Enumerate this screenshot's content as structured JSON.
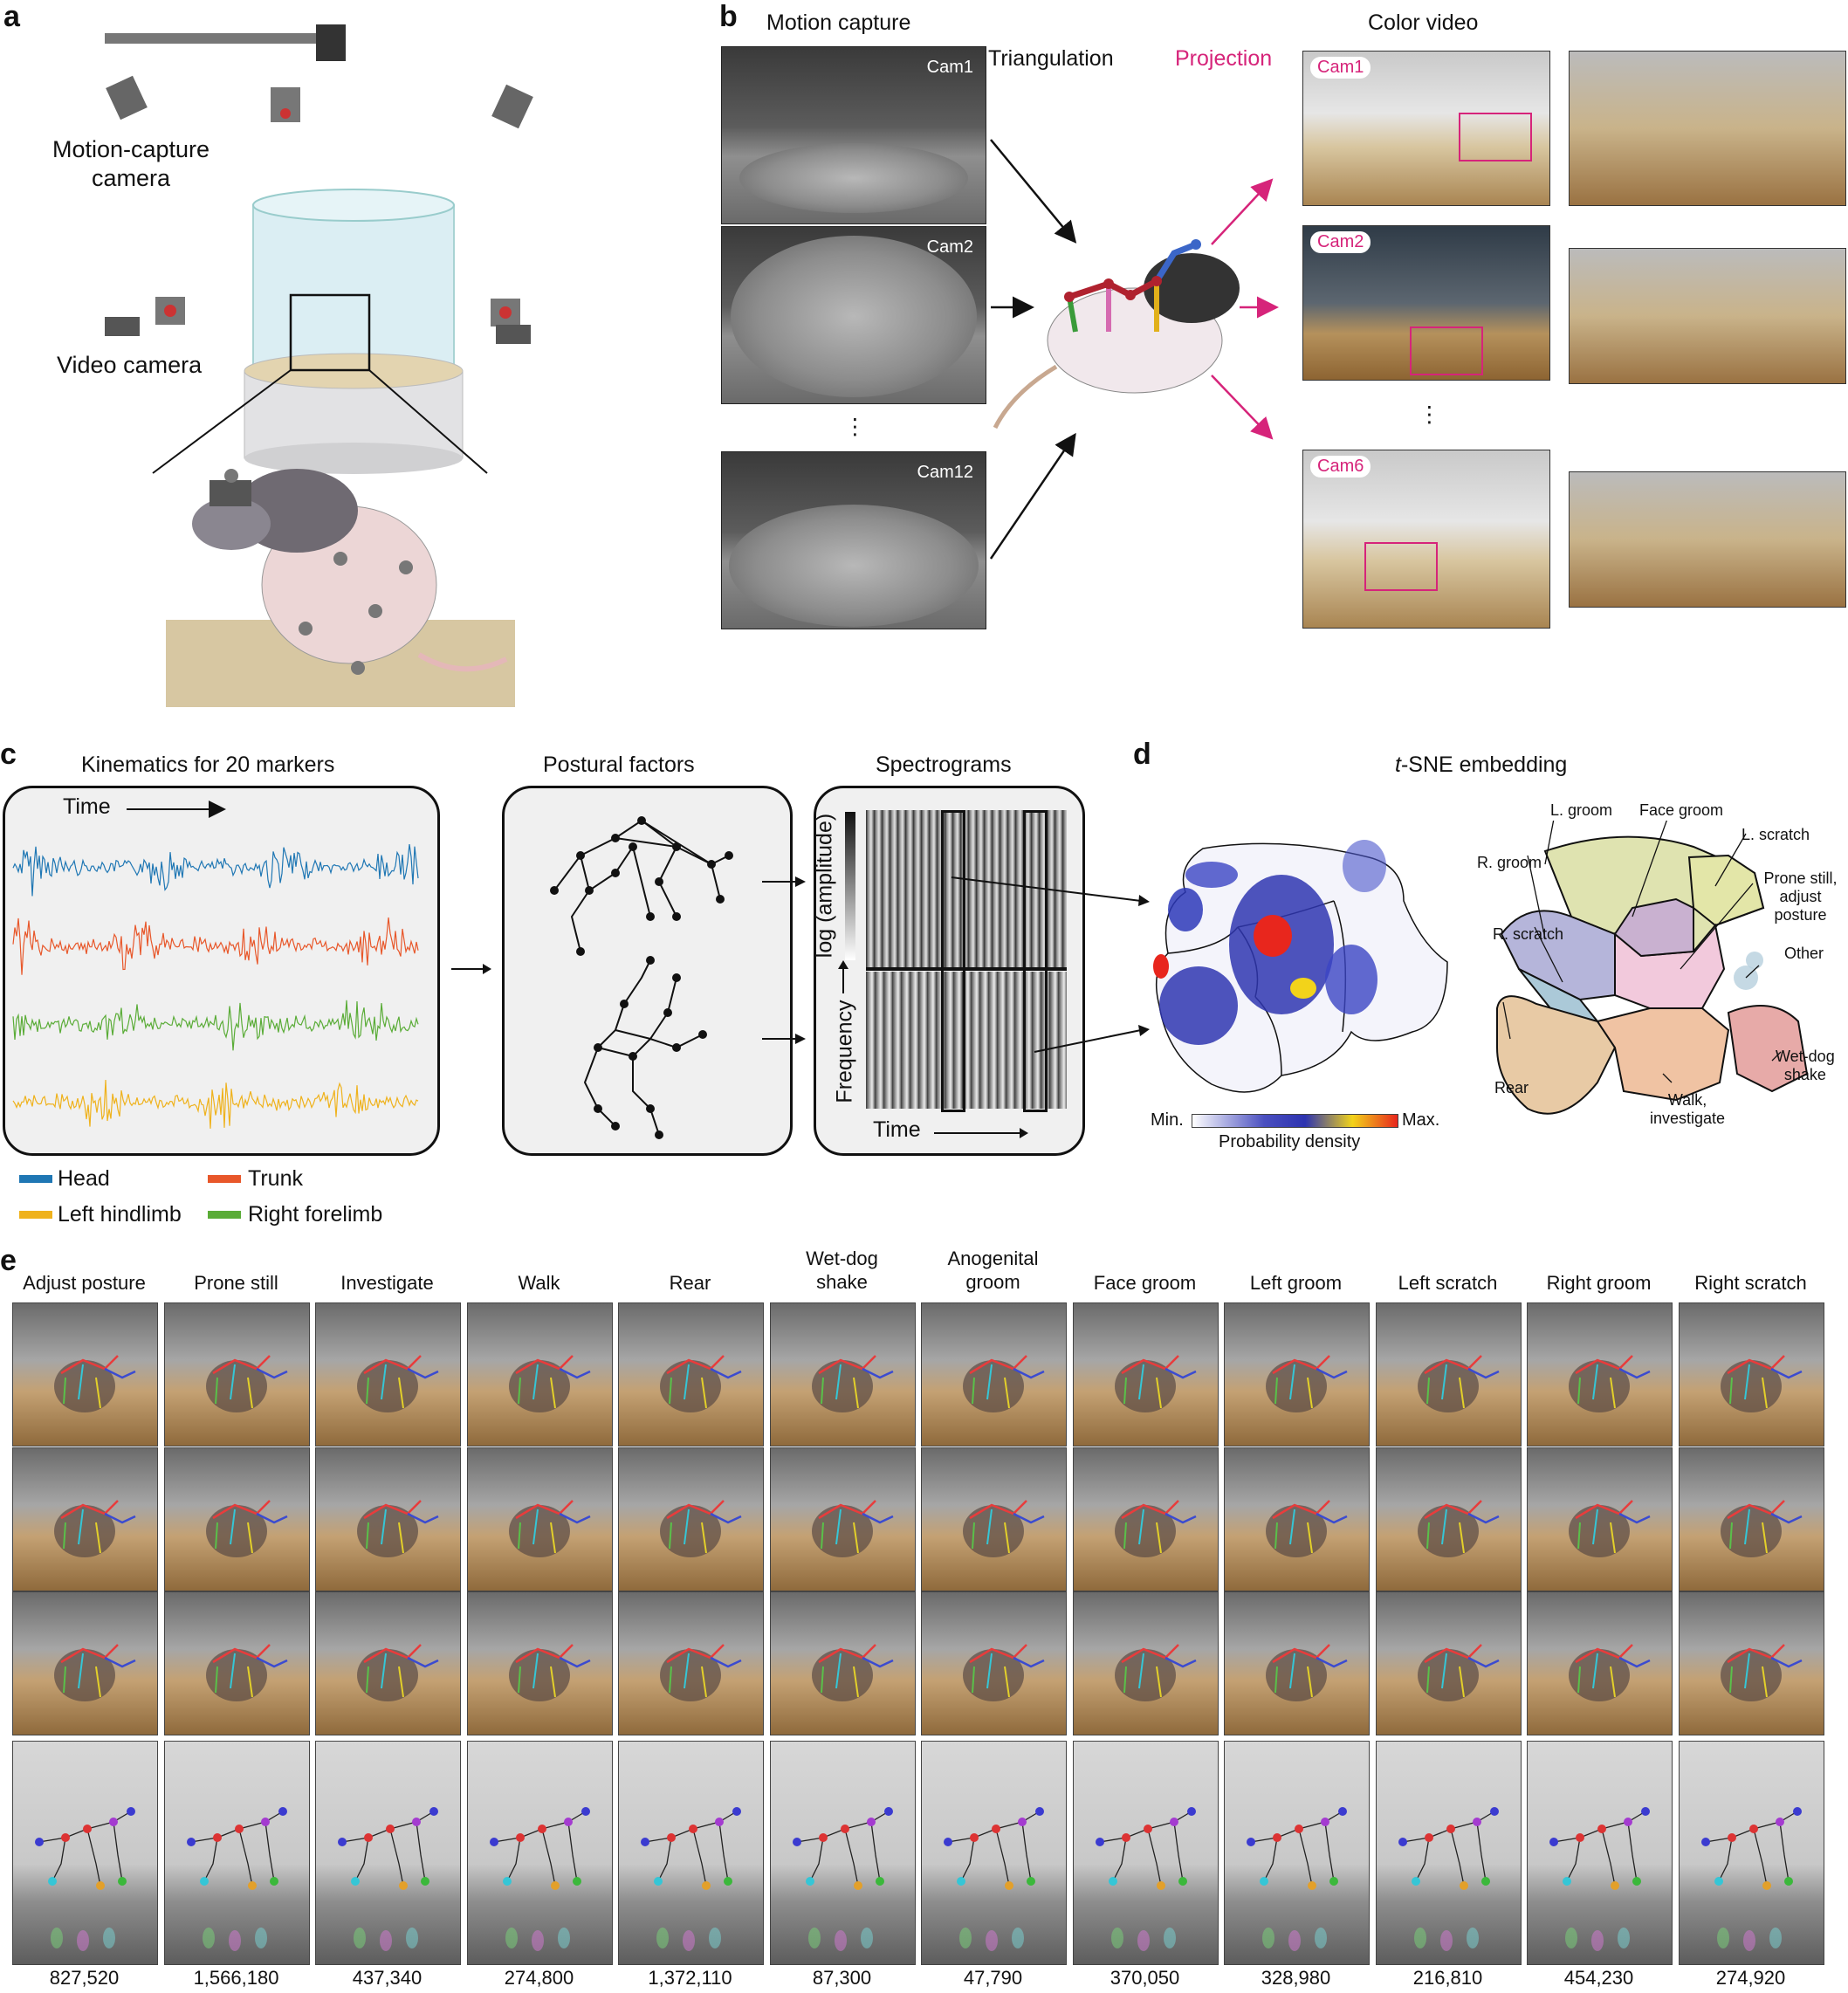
{
  "panels": {
    "a": {
      "label": "a",
      "motion_camera": "Motion-capture\ncamera",
      "motion_camera_lines": [
        "Motion-capture",
        "camera"
      ],
      "video_camera": "Video camera"
    },
    "b": {
      "label": "b",
      "motion_capture": "Motion capture",
      "triangulation": "Triangulation",
      "projection": "Projection",
      "color_video": "Color video",
      "mocap_cams": [
        "Cam1",
        "Cam2",
        "Cam12"
      ],
      "color_cams": [
        "Cam1",
        "Cam2",
        "Cam6"
      ],
      "ellipsis": "⋮"
    },
    "c": {
      "label": "c",
      "kinematics_title": "Kinematics for 20 markers",
      "time_label": "Time",
      "postural_title": "Postural factors",
      "spectro_title": "Spectrograms",
      "spectro_ylabel_top": "log (amplitude)",
      "spectro_ylabel_bottom": "Frequency",
      "spectro_xlabel": "Time",
      "legend": [
        {
          "name": "Head",
          "color": "#1f77b4"
        },
        {
          "name": "Trunk",
          "color": "#e8572a"
        },
        {
          "name": "Left hindlimb",
          "color": "#efb21c"
        },
        {
          "name": "Right forelimb",
          "color": "#5aac37"
        }
      ],
      "trace_colors": [
        "#1f77b4",
        "#e8572a",
        "#5aac37",
        "#efb21c"
      ]
    },
    "d": {
      "label": "d",
      "title_italic": "t",
      "title_rest": "-SNE embedding",
      "colorbar_min": "Min.",
      "colorbar_max": "Max.",
      "colorbar_label": "Probability density",
      "regions": [
        {
          "name": "L. groom",
          "color": "#cfcfa6"
        },
        {
          "name": "Face groom",
          "color": "#c8b0cf"
        },
        {
          "name": "L. scratch",
          "color": "#e0e3a8"
        },
        {
          "name": "R. groom",
          "color": "#b3b3d8"
        },
        {
          "name": "Prone still,\nadjust posture",
          "color": "#f1c7d9"
        },
        {
          "name": "R. scratch",
          "color": "#a9c7d6"
        },
        {
          "name": "Other",
          "color": "#b7d0dd"
        },
        {
          "name": "Rear",
          "color": "#e8caa5"
        },
        {
          "name": "Wet-dog\nshake",
          "color": "#e7aaa8"
        },
        {
          "name": "Walk,\ninvestigate",
          "color": "#f0c3a3"
        }
      ]
    },
    "e": {
      "label": "e",
      "behaviors": [
        {
          "title": "Adjust posture",
          "count": "827,520"
        },
        {
          "title": "Prone still",
          "count": "1,566,180"
        },
        {
          "title": "Investigate",
          "count": "437,340"
        },
        {
          "title": "Walk",
          "count": "274,800"
        },
        {
          "title": "Rear",
          "count": "1,372,110"
        },
        {
          "title": "Wet-dog\nshake",
          "count": "87,300"
        },
        {
          "title": "Anogenital\ngroom",
          "count": "47,790"
        },
        {
          "title": "Face groom",
          "count": "370,050"
        },
        {
          "title": "Left groom",
          "count": "328,980"
        },
        {
          "title": "Left scratch",
          "count": "216,810"
        },
        {
          "title": "Right groom",
          "count": "454,230"
        },
        {
          "title": "Right scratch",
          "count": "274,920"
        }
      ]
    }
  }
}
